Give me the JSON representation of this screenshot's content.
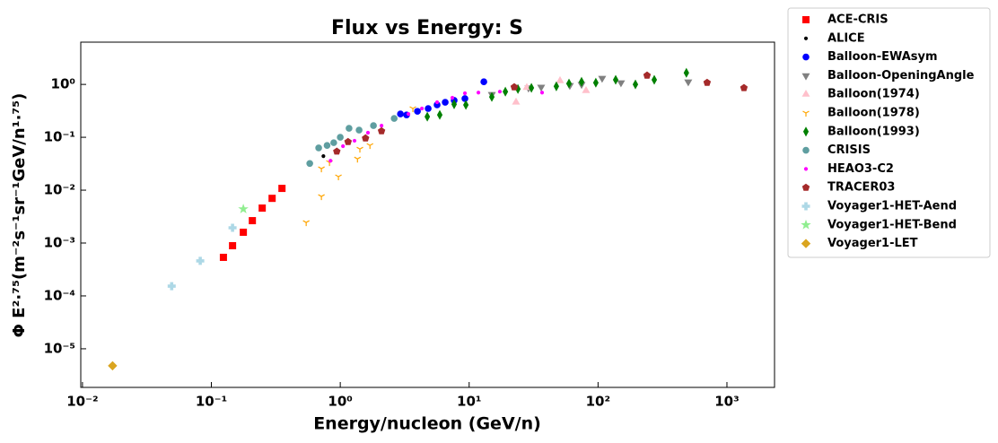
{
  "chart_data": {
    "type": "scatter",
    "title": "Flux vs Energy: S",
    "x_label": "Energy/nucleon (GeV/n)",
    "y_label": "Φ E²·⁷⁵(m⁻²s⁻¹sr⁻¹GeV/n¹·⁷⁵)",
    "xscale": "log",
    "yscale": "log",
    "legend": "outside-upper-right",
    "xlim": [
      0.0097,
      2340
    ],
    "ylim": [
      1.86e-06,
      6.3
    ],
    "xticks": [
      {
        "value": 0.01,
        "label": "10⁻²"
      },
      {
        "value": 0.1,
        "label": "10⁻¹"
      },
      {
        "value": 1,
        "label": "10⁰"
      },
      {
        "value": 10,
        "label": "10¹"
      },
      {
        "value": 100,
        "label": "10²"
      },
      {
        "value": 1000,
        "label": "10³"
      }
    ],
    "yticks": [
      {
        "value": 1e-05,
        "label": "10⁻⁵"
      },
      {
        "value": 0.0001,
        "label": "10⁻⁴"
      },
      {
        "value": 0.001,
        "label": "10⁻³"
      },
      {
        "value": 0.01,
        "label": "10⁻²"
      },
      {
        "value": 0.1,
        "label": "10⁻¹"
      },
      {
        "value": 1,
        "label": "10⁰"
      }
    ],
    "series": [
      {
        "name": "ACE-CRIS",
        "color": "#ff0000",
        "marker": "square",
        "x": [
          0.124,
          0.146,
          0.177,
          0.208,
          0.248,
          0.296,
          0.353
        ],
        "values": [
          0.000536,
          0.00089,
          0.0016,
          0.00265,
          0.00458,
          0.007,
          0.0108
        ]
      },
      {
        "name": "ALICE",
        "color": "#000000",
        "marker": "dot",
        "x": [
          0.74
        ],
        "values": [
          0.044
        ]
      },
      {
        "name": "Balloon-EWAsym",
        "color": "#0000ff",
        "marker": "circle",
        "x": [
          2.93,
          3.27,
          3.97,
          4.81,
          5.64,
          6.52,
          7.65,
          9.27,
          13.0
        ],
        "values": [
          0.276,
          0.265,
          0.31,
          0.35,
          0.41,
          0.46,
          0.5,
          0.54,
          1.12
        ]
      },
      {
        "name": "Balloon-OpeningAngle",
        "color": "#808080",
        "marker": "triangle-down",
        "x": [
          15.0,
          28.9,
          36.2,
          60.4,
          74.5,
          107.6,
          150.7,
          501
        ],
        "values": [
          0.65,
          0.86,
          0.89,
          0.96,
          1.0,
          1.31,
          1.08,
          1.12
        ]
      },
      {
        "name": "Balloon(1974)",
        "color": "#ffc0cb",
        "marker": "triangle-up",
        "x": [
          23.1,
          28.0,
          50.7,
          80.7
        ],
        "values": [
          0.46,
          0.87,
          1.17,
          0.76
        ]
      },
      {
        "name": "Balloon(1978)",
        "color": "#ffa500",
        "marker": "tri-down",
        "x": [
          0.544,
          0.714,
          0.714,
          0.825,
          0.968,
          1.36,
          1.42,
          1.7,
          3.66
        ],
        "values": [
          0.00245,
          0.0076,
          0.0255,
          0.0335,
          0.018,
          0.039,
          0.06,
          0.0703,
          0.35
        ]
      },
      {
        "name": "Balloon(1993)",
        "color": "#008000",
        "marker": "thin-diamond",
        "x": [
          4.73,
          5.92,
          7.65,
          9.43,
          15.0,
          19.1,
          23.9,
          30.4,
          47.5,
          59.5,
          74.5,
          96.2,
          137,
          195,
          273,
          485
        ],
        "values": [
          0.245,
          0.265,
          0.42,
          0.41,
          0.58,
          0.73,
          0.82,
          0.86,
          0.92,
          1.04,
          1.12,
          1.08,
          1.22,
          1.0,
          1.22,
          1.66
        ]
      },
      {
        "name": "CRISIS",
        "color": "#5f9ea0",
        "marker": "circle",
        "x": [
          0.58,
          0.68,
          0.79,
          0.89,
          1.0,
          1.17,
          1.4,
          1.81,
          2.62
        ],
        "values": [
          0.032,
          0.063,
          0.07,
          0.079,
          0.1,
          0.148,
          0.137,
          0.166,
          0.227
        ]
      },
      {
        "name": "HEAO3-C2",
        "color": "#ff00ff",
        "marker": "dot",
        "x": [
          0.84,
          1.05,
          1.29,
          1.64,
          2.09,
          3.38,
          4.3,
          5.64,
          7.41,
          9.27,
          11.8,
          17.3,
          36.8
        ],
        "values": [
          0.036,
          0.068,
          0.086,
          0.122,
          0.166,
          0.276,
          0.35,
          0.46,
          0.56,
          0.68,
          0.7,
          0.73,
          0.7
        ]
      },
      {
        "name": "TRACER03",
        "color": "#a52a2a",
        "marker": "pentagon",
        "x": [
          0.94,
          1.15,
          1.57,
          2.09,
          22.4,
          240,
          702,
          1355
        ],
        "values": [
          0.054,
          0.082,
          0.096,
          0.131,
          0.89,
          1.48,
          1.08,
          0.86
        ]
      },
      {
        "name": "Voyager1-HET-Aend",
        "color": "#add8e6",
        "marker": "plus",
        "x": [
          0.0492,
          0.082,
          0.146
        ],
        "values": [
          0.000153,
          0.00046,
          0.00194
        ]
      },
      {
        "name": "Voyager1-HET-Bend",
        "color": "#90ee90",
        "marker": "star",
        "x": [
          0.177
        ],
        "values": [
          0.0044
        ]
      },
      {
        "name": "Voyager1-LET",
        "color": "#daa520",
        "marker": "diamond",
        "x": [
          0.0171
        ],
        "values": [
          4.77e-06
        ]
      }
    ]
  }
}
